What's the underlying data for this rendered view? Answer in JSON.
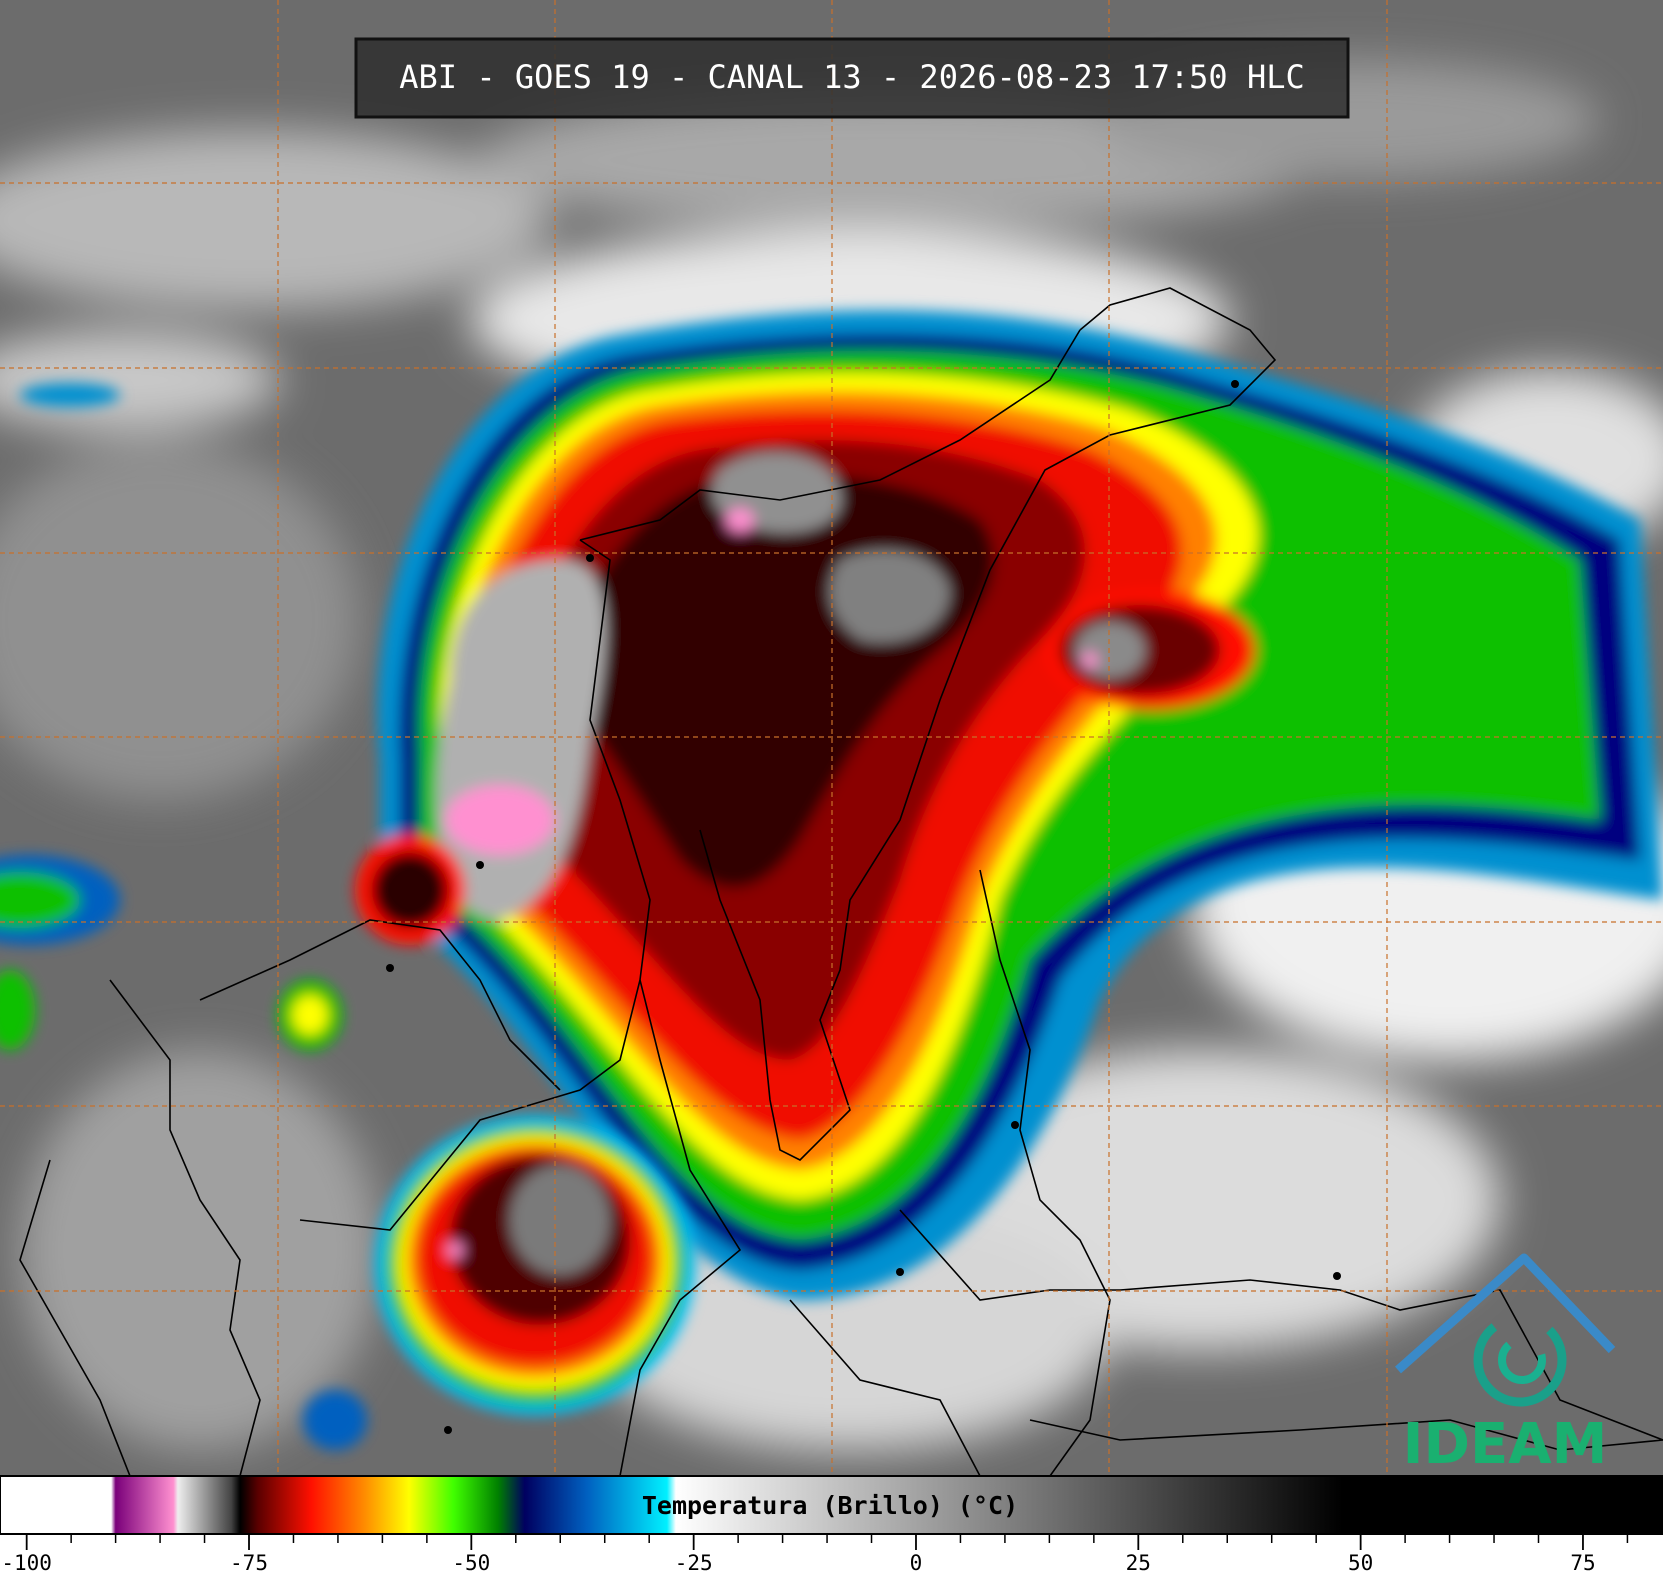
{
  "header": {
    "title": "ABI - GOES 19 - CANAL 13 - 2026-08-23 17:50 HLC"
  },
  "colorbar": {
    "label": "Temperatura (Brillo) (°C)",
    "xlim": [
      -103,
      84
    ],
    "xticks": [
      -100,
      -75,
      -50,
      -25,
      0,
      25,
      50,
      75
    ],
    "minor_xticks": [
      -95,
      -90,
      -85,
      -80,
      -70,
      -65,
      -60,
      -55,
      -45,
      -40,
      -35,
      -30,
      -20,
      -15,
      -10,
      -5,
      5,
      10,
      15,
      20,
      30,
      35,
      40,
      45,
      55,
      60,
      65,
      70,
      80
    ],
    "stops": [
      {
        "value": -103,
        "color": "#ffffff"
      },
      {
        "value": -90.5,
        "color": "#ffffff"
      },
      {
        "value": -90,
        "color": "#7a007a"
      },
      {
        "value": -83.5,
        "color": "#ff90d0"
      },
      {
        "value": -83,
        "color": "#eeeeee"
      },
      {
        "value": -77,
        "color": "#444444"
      },
      {
        "value": -76,
        "color": "#000000"
      },
      {
        "value": -74,
        "color": "#5a0000"
      },
      {
        "value": -68,
        "color": "#ff1000"
      },
      {
        "value": -62,
        "color": "#ff8c00"
      },
      {
        "value": -57,
        "color": "#ffff00"
      },
      {
        "value": -52,
        "color": "#40ff00"
      },
      {
        "value": -47,
        "color": "#008000"
      },
      {
        "value": -44,
        "color": "#000060"
      },
      {
        "value": -37,
        "color": "#0060c0"
      },
      {
        "value": -28,
        "color": "#00f0ff"
      },
      {
        "value": -27,
        "color": "#ffffff"
      },
      {
        "value": 48,
        "color": "#000000"
      },
      {
        "value": 84,
        "color": "#000000"
      }
    ]
  },
  "logo": {
    "text": "IDEAM"
  }
}
